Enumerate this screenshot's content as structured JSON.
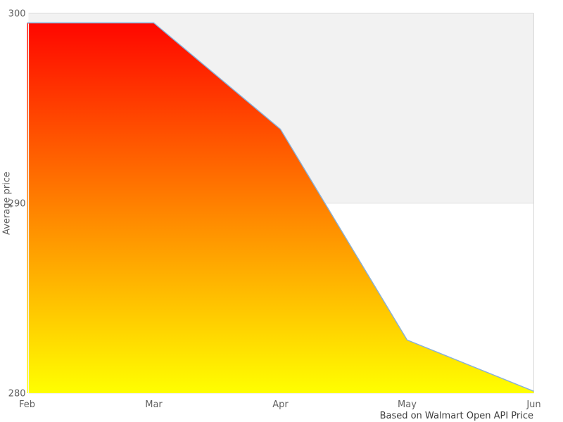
{
  "chart_data": {
    "type": "area",
    "categories": [
      "Feb",
      "Mar",
      "Apr",
      "May",
      "Jun"
    ],
    "values": [
      299.5,
      299.5,
      293.9,
      282.8,
      280.1
    ],
    "title": "",
    "xlabel": "",
    "ylabel": "Average price",
    "caption": "Based on Walmart Open API Price",
    "ylim": [
      280,
      300
    ],
    "yticks": [
      280,
      290,
      300
    ],
    "grid": "horizontal",
    "alternate_band": [
      290,
      300
    ],
    "legend": "none"
  },
  "colors": {
    "background": "#ffffff",
    "area_gradient_top": "#ff0000",
    "area_gradient_bottom": "#ffff00",
    "line": "#88b0d8",
    "band": "#f2f2f2",
    "gridline": "#e7e7e7",
    "plot_border": "#d9d9d9",
    "axis_label": "#606060",
    "caption_text": "#3c3c3c"
  }
}
